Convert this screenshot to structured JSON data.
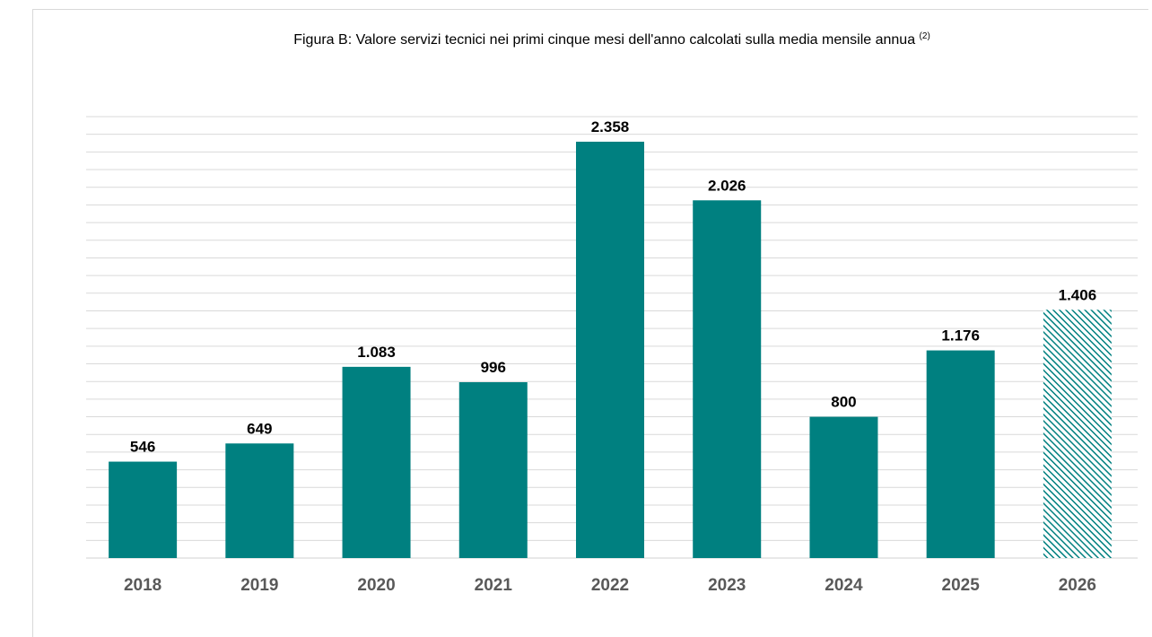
{
  "chart_data": {
    "type": "bar",
    "title": "Figura B: Valore servizi tecnici nei primi cinque mesi dell'anno calcolati sulla media mensile annua",
    "title_superscript": "(2)",
    "categories": [
      "2018",
      "2019",
      "2020",
      "2021",
      "2022",
      "2023",
      "2024",
      "2025",
      "2026"
    ],
    "values": [
      546,
      649,
      1083,
      996,
      2358,
      2026,
      800,
      1176,
      1406
    ],
    "value_labels": [
      "546",
      "649",
      "1.083",
      "996",
      "2.358",
      "2.026",
      "800",
      "1.176",
      "1.406"
    ],
    "hatched_categories": [
      "2026"
    ],
    "xlabel": "",
    "ylabel": "",
    "ylim": [
      0,
      2500
    ],
    "grid": true,
    "legend": "none",
    "colors": {
      "bar": "#008080",
      "hatch": "#008080",
      "grid": "#d9d9d9",
      "tick_label": "#595959",
      "value_label": "#000000"
    }
  }
}
